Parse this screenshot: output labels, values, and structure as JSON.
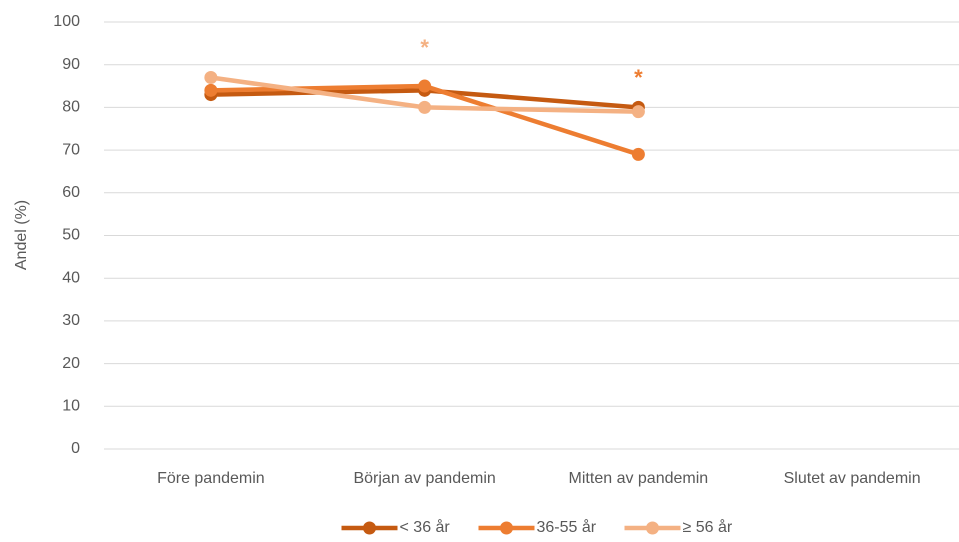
{
  "chart_data": {
    "type": "line",
    "y_label": "Andel (%)",
    "categories": [
      "Före pandemin",
      "Början av pandemin",
      "Mitten av pandemin",
      "Slutet av pandemin"
    ],
    "series": [
      {
        "name": "< 36 år",
        "color": "#c55a11",
        "values": [
          83,
          84,
          80,
          null
        ]
      },
      {
        "name": "36-55 år",
        "color": "#ed7d31",
        "values": [
          84,
          85,
          69,
          null
        ]
      },
      {
        "name": "≥ 56 år",
        "color": "#f4b183",
        "values": [
          87,
          80,
          79,
          null
        ]
      }
    ],
    "annotations": [
      {
        "text": "*",
        "x": "Början av pandemin",
        "y": 95,
        "color": "#f4b183"
      },
      {
        "text": "*",
        "x": "Mitten av pandemin",
        "y": 88,
        "color": "#ed7d31"
      }
    ],
    "ylim": [
      0,
      100
    ],
    "yticks": [
      0,
      10,
      20,
      30,
      40,
      50,
      60,
      70,
      80,
      90,
      100
    ],
    "grid": true,
    "legend": "bottom"
  }
}
